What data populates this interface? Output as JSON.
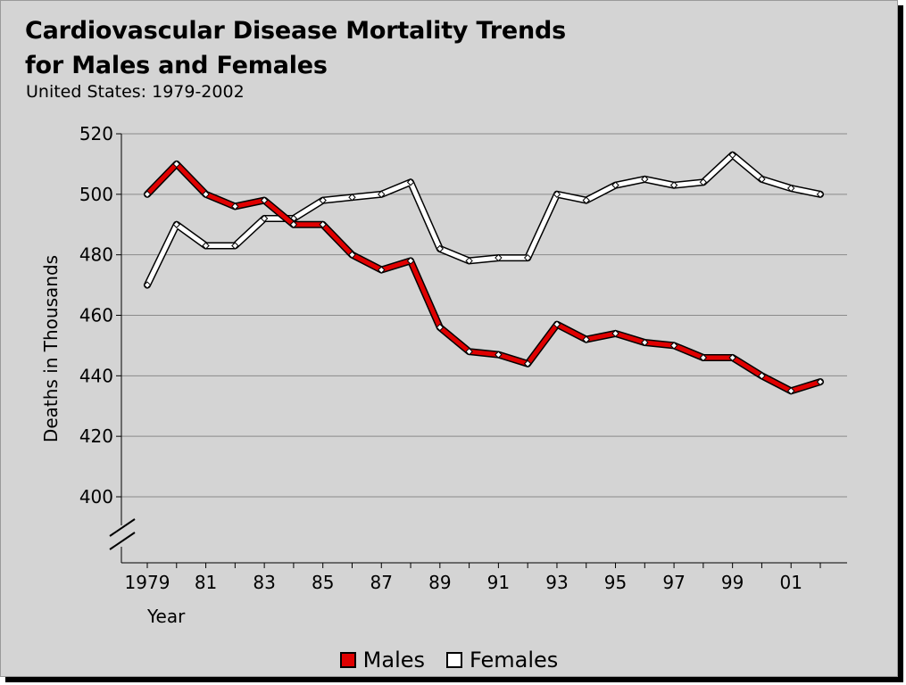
{
  "title_line1": "Cardiovascular Disease Mortality Trends",
  "title_line2": "for Males and Females",
  "subtitle": "United States: 1979-2002",
  "chart_data": {
    "type": "line",
    "title": "Cardiovascular Disease Mortality Trends for Males and Females",
    "subtitle": "United States: 1979-2002",
    "xlabel": "Year",
    "ylabel": "Deaths in Thousands",
    "x": [
      1979,
      1980,
      1981,
      1982,
      1983,
      1984,
      1985,
      1986,
      1987,
      1988,
      1989,
      1990,
      1991,
      1992,
      1993,
      1994,
      1995,
      1996,
      1997,
      1998,
      1999,
      2000,
      2001,
      2002
    ],
    "xticks": [
      "1979",
      "81",
      "83",
      "85",
      "87",
      "89",
      "91",
      "93",
      "95",
      "97",
      "99",
      "01"
    ],
    "xtick_values": [
      1979,
      1981,
      1983,
      1985,
      1987,
      1989,
      1991,
      1993,
      1995,
      1997,
      1999,
      2001
    ],
    "yticks": [
      400,
      420,
      440,
      460,
      480,
      500,
      520
    ],
    "ylim": [
      400,
      520
    ],
    "axis_break": true,
    "grid": true,
    "legend_position": "bottom",
    "series": [
      {
        "name": "Males",
        "color": "#e00000",
        "values": [
          500,
          510,
          500,
          496,
          498,
          490,
          490,
          480,
          475,
          478,
          456,
          448,
          447,
          444,
          457,
          452,
          454,
          451,
          450,
          446,
          446,
          440,
          435,
          438
        ]
      },
      {
        "name": "Females",
        "color": "#ffffff",
        "values": [
          470,
          490,
          483,
          483,
          492,
          492,
          498,
          499,
          500,
          504,
          482,
          478,
          479,
          479,
          500,
          498,
          503,
          505,
          503,
          504,
          513,
          505,
          502,
          500
        ]
      }
    ]
  }
}
